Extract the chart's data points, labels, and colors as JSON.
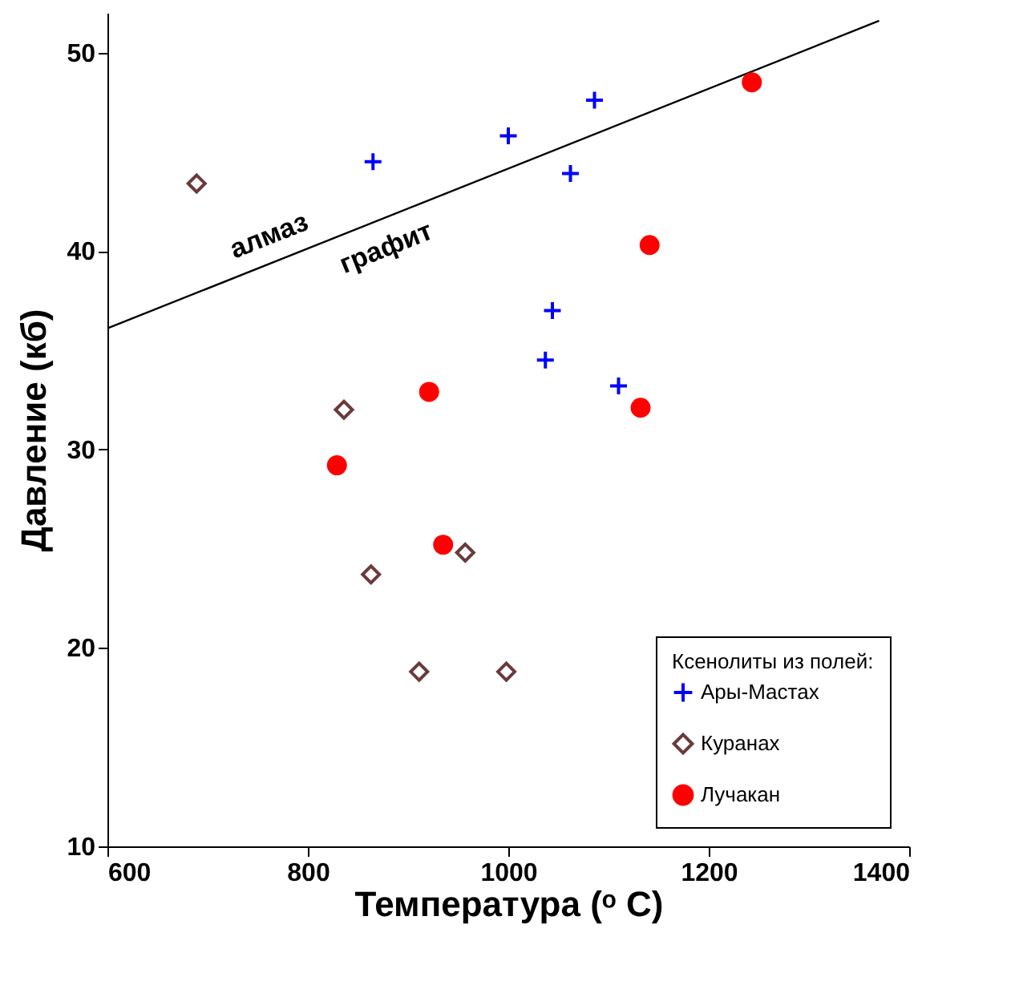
{
  "chart_data": {
    "type": "scatter",
    "xlabel": "Температура (ᵒ C)",
    "ylabel": "Давление (кб)",
    "legend_title": "Ксенолиты из полей:",
    "legend": "bottom right",
    "grid": false,
    "xlim": [
      600,
      1400
    ],
    "xticks": [
      600,
      800,
      1000,
      1200,
      1400
    ],
    "ylim": [
      10,
      52
    ],
    "yticks": [
      10,
      20,
      30,
      40,
      50
    ],
    "series": [
      {
        "type": "line",
        "color": "#000000",
        "x": [
          600,
          1370
        ],
        "values": [
          36.1,
          51.6
        ]
      },
      {
        "name": "Ары-Мастах",
        "color": "#0000ff",
        "marker": "cross",
        "x": [
          865,
          1000,
          1086,
          1062,
          1044,
          1037,
          1110
        ],
        "values": [
          44.5,
          45.8,
          47.6,
          43.9,
          37.0,
          34.5,
          33.2
        ]
      },
      {
        "name": "Куранах",
        "color": "#6b3a3a",
        "marker": "diamond",
        "x": [
          689,
          836,
          863,
          957,
          911,
          998
        ],
        "values": [
          43.4,
          32.0,
          23.7,
          24.8,
          18.8,
          18.8
        ]
      },
      {
        "name": "Лучакан",
        "color": "#ff0000",
        "marker": "circle",
        "x": [
          829,
          921,
          935,
          1141,
          1132,
          1243
        ],
        "values": [
          29.2,
          32.9,
          25.2,
          40.3,
          32.1,
          48.5
        ]
      }
    ],
    "annotations": [
      "алмаз",
      "графит"
    ]
  }
}
